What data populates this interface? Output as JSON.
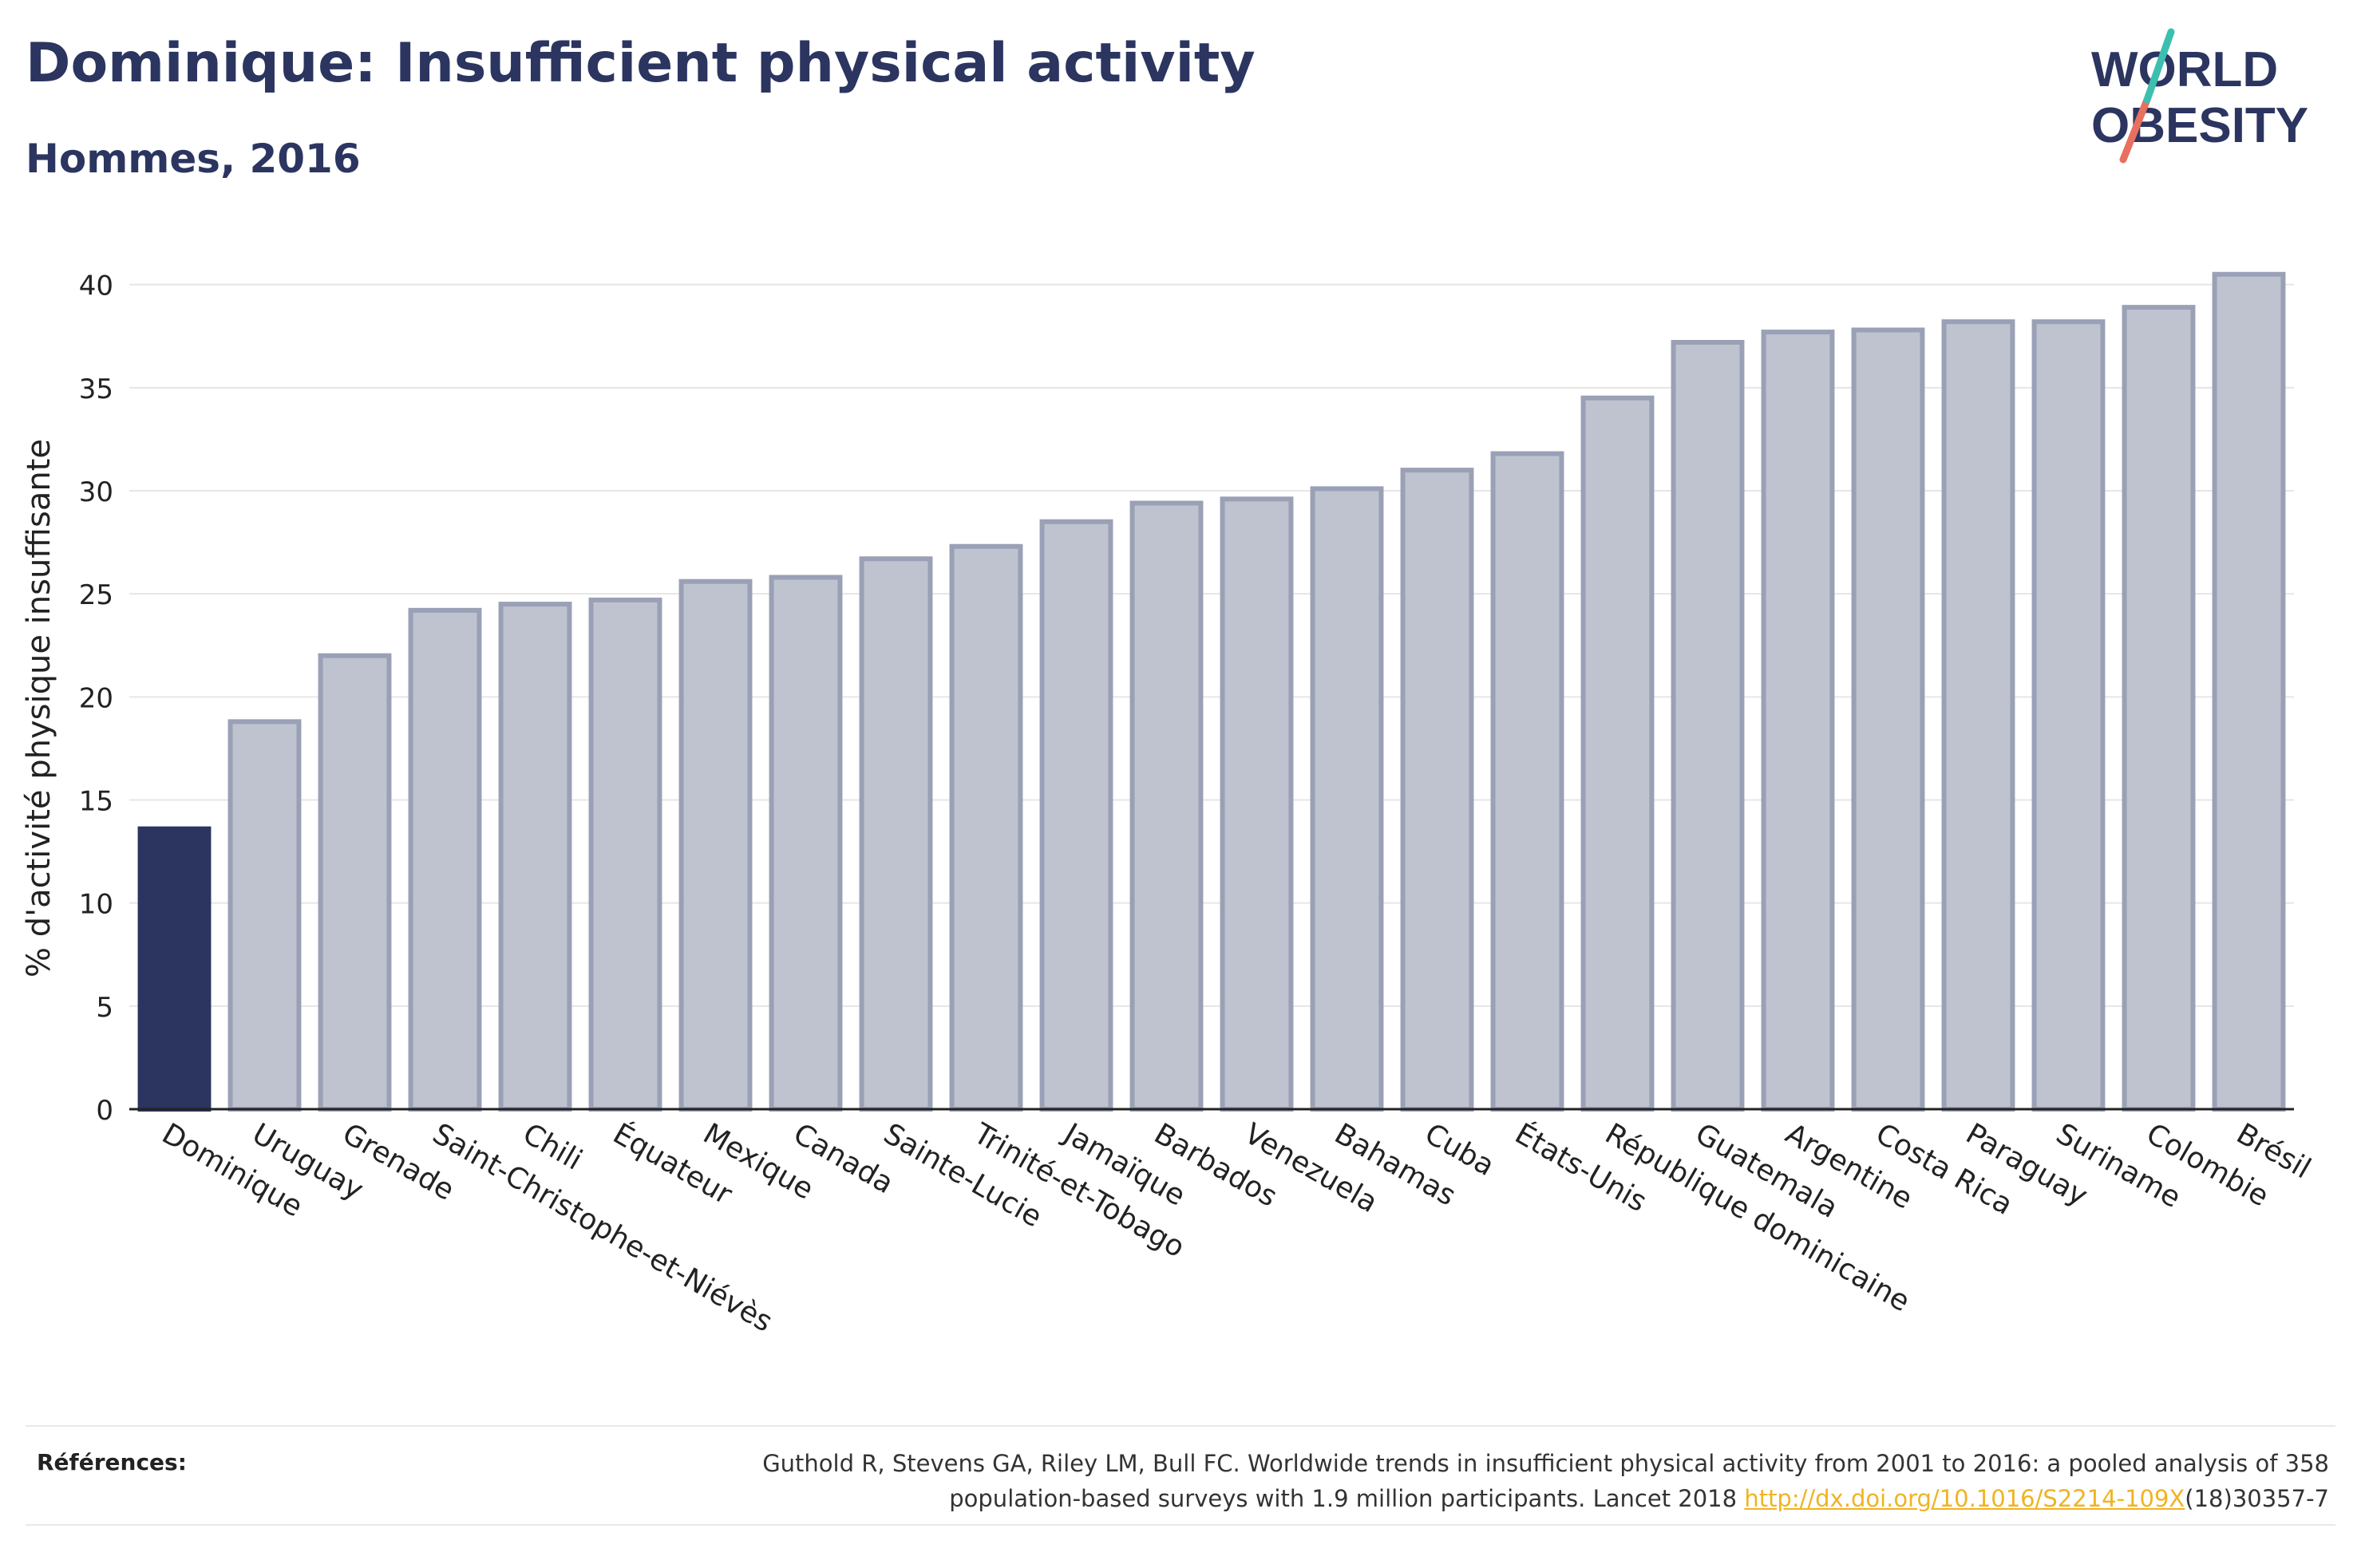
{
  "header": {
    "title": "Dominique: Insufficient physical activity",
    "subtitle": "Hommes, 2016"
  },
  "logo": {
    "line1": "WORLD",
    "line2": "OBESITY",
    "colors": {
      "text": "#2b3560",
      "slash_teal": "#3cbfae",
      "slash_coral": "#e8705f"
    }
  },
  "chart_data": {
    "type": "bar",
    "ylabel": "% d'activité physique insuffisante",
    "xlabel": "",
    "ylim": [
      0,
      42
    ],
    "yticks": [
      0,
      5,
      10,
      15,
      20,
      25,
      30,
      35,
      40
    ],
    "grid": true,
    "highlight_color": "#2b3560",
    "bar_color": "#bfc3d0",
    "bar_edge_color": "#9aa0b5",
    "categories": [
      "Dominique",
      "Uruguay",
      "Grenade",
      "Saint-Christophe-et-Niévès",
      "Chili",
      "Équateur",
      "Mexique",
      "Canada",
      "Sainte-Lucie",
      "Trinité-et-Tobago",
      "Jamaïque",
      "Barbados",
      "Venezuela",
      "Bahamas",
      "Cuba",
      "États-Unis",
      "République dominicaine",
      "Guatemala",
      "Argentine",
      "Costa Rica",
      "Paraguay",
      "Suriname",
      "Colombie",
      "Brésil"
    ],
    "values": [
      13.6,
      18.8,
      22.0,
      24.2,
      24.5,
      24.7,
      25.6,
      25.8,
      26.7,
      27.3,
      28.5,
      29.4,
      29.6,
      30.1,
      31.0,
      31.8,
      34.5,
      37.2,
      37.7,
      37.8,
      38.2,
      38.2,
      38.9,
      40.5
    ],
    "highlight": "Dominique"
  },
  "references": {
    "label": "Références:",
    "text_line1": "Guthold R, Stevens GA, Riley LM, Bull FC. Worldwide trends in insufficient physical activity from 2001 to 2016: a pooled analysis of 358",
    "text_line2": "population-based surveys with 1.9 million participants. Lancet 2018 ",
    "link": "http://dx.doi.org/10.1016/S2214-109X",
    "text_after_link": "(18)30357-7"
  }
}
